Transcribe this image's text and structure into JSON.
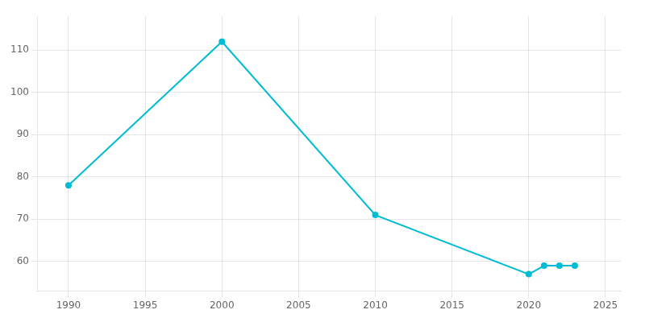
{
  "chart_data": {
    "type": "line",
    "x": [
      1990,
      2000,
      2010,
      2020,
      2021,
      2022,
      2023
    ],
    "values": [
      78,
      112,
      71,
      57,
      59,
      59,
      59
    ],
    "color": "#00BCD4",
    "marker": "circle",
    "xlim": [
      1988,
      2026
    ],
    "ylim": [
      53,
      118
    ],
    "xticks": [
      1990,
      1995,
      2000,
      2005,
      2010,
      2015,
      2020,
      2025
    ],
    "yticks": [
      60,
      70,
      80,
      90,
      100,
      110
    ],
    "grid": true
  }
}
